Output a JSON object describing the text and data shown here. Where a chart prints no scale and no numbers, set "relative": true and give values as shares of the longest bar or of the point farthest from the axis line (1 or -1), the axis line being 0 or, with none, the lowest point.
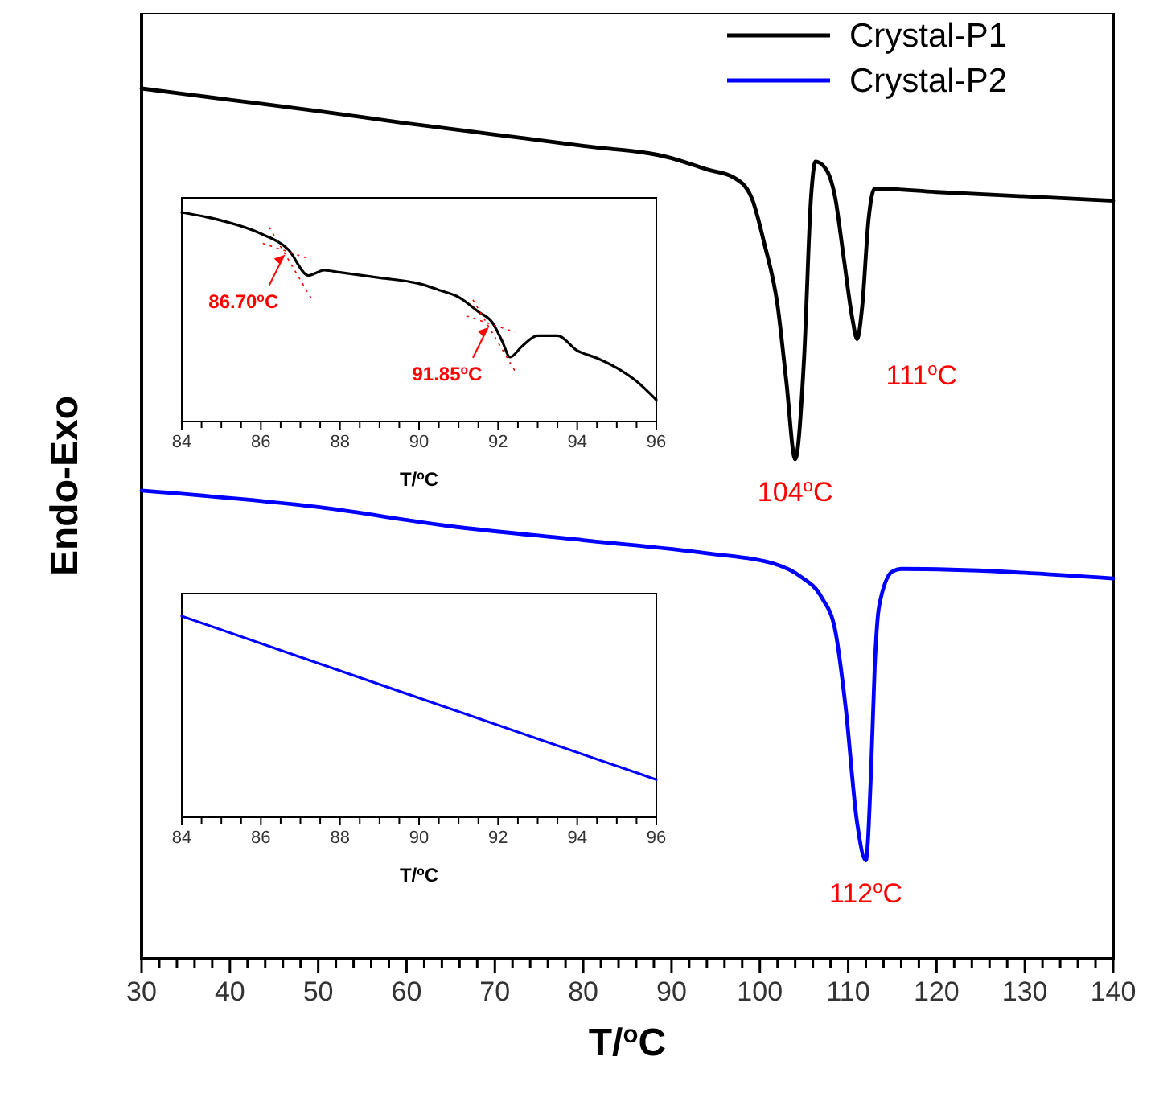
{
  "chart_data": [
    {
      "type": "line",
      "relative": true,
      "xlabel": "T/$^{o}$C",
      "ylabel": "Endo-Exo",
      "xlim": [
        30,
        140
      ],
      "legend": "top right",
      "grid": false,
      "tick_labels": "x",
      "xticks": [
        30,
        {
          "value": 32,
          "label": null
        },
        {
          "value": 34,
          "label": null
        },
        {
          "value": 36,
          "label": null
        },
        {
          "value": 38,
          "label": null
        },
        40,
        {
          "value": 42,
          "label": null
        },
        {
          "value": 44,
          "label": null
        },
        {
          "value": 46,
          "label": null
        },
        {
          "value": 48,
          "label": null
        },
        50,
        {
          "value": 52,
          "label": null
        },
        {
          "value": 54,
          "label": null
        },
        {
          "value": 56,
          "label": null
        },
        {
          "value": 58,
          "label": null
        },
        60,
        {
          "value": 62,
          "label": null
        },
        {
          "value": 64,
          "label": null
        },
        {
          "value": 66,
          "label": null
        },
        {
          "value": 68,
          "label": null
        },
        70,
        {
          "value": 72,
          "label": null
        },
        {
          "value": 74,
          "label": null
        },
        {
          "value": 76,
          "label": null
        },
        {
          "value": 78,
          "label": null
        },
        80,
        {
          "value": 82,
          "label": null
        },
        {
          "value": 84,
          "label": null
        },
        {
          "value": 86,
          "label": null
        },
        {
          "value": 88,
          "label": null
        },
        90,
        {
          "value": 92,
          "label": null
        },
        {
          "value": 94,
          "label": null
        },
        {
          "value": 96,
          "label": null
        },
        {
          "value": 98,
          "label": null
        },
        100,
        {
          "value": 102,
          "label": null
        },
        {
          "value": 104,
          "label": null
        },
        {
          "value": 106,
          "label": null
        },
        {
          "value": 108,
          "label": null
        },
        110,
        {
          "value": 112,
          "label": null
        },
        {
          "value": 114,
          "label": null
        },
        {
          "value": 116,
          "label": null
        },
        {
          "value": 118,
          "label": null
        },
        120,
        {
          "value": 122,
          "label": null
        },
        {
          "value": 124,
          "label": null
        },
        {
          "value": 126,
          "label": null
        },
        {
          "value": 128,
          "label": null
        },
        130,
        {
          "value": 132,
          "label": null
        },
        {
          "value": 134,
          "label": null
        },
        {
          "value": 136,
          "label": null
        },
        {
          "value": 138,
          "label": null
        },
        140
      ],
      "series": [
        {
          "name": "Crystal-P1",
          "color": "#000000",
          "x": [
            30,
            40,
            50,
            60,
            70,
            80,
            90,
            94,
            97,
            99,
            100.5,
            102,
            103,
            104,
            105,
            105.8,
            106.3,
            107.5,
            108.5,
            109.5,
            110.5,
            111,
            111.6,
            112.3,
            113,
            120,
            130,
            140
          ],
          "values": [
            1.0,
            0.987,
            0.974,
            0.96,
            0.947,
            0.934,
            0.92,
            0.907,
            0.898,
            0.876,
            0.822,
            0.751,
            0.663,
            0.574,
            0.689,
            0.876,
            0.916,
            0.907,
            0.876,
            0.805,
            0.734,
            0.712,
            0.751,
            0.849,
            0.885,
            0.881,
            0.876,
            0.871
          ]
        },
        {
          "name": "Crystal-P2",
          "color": "#0000ff",
          "x": [
            30,
            50,
            65,
            80,
            94,
            101.6,
            104.5,
            107,
            108.5,
            109.7,
            111,
            112,
            112.6,
            113,
            113.5,
            115,
            116,
            140
          ],
          "values": [
            0.538,
            0.519,
            0.497,
            0.481,
            0.466,
            0.454,
            0.44,
            0.415,
            0.379,
            0.29,
            0.157,
            0.113,
            0.219,
            0.335,
            0.405,
            0.445,
            0.448,
            0.437
          ]
        }
      ],
      "annotations": [
        {
          "text": "104$^{o}$C",
          "x": 104,
          "y": 0.574
        },
        {
          "text": "111$^{o}$C",
          "x": 111,
          "y": 0.712
        },
        {
          "text": "112$^{o}$C",
          "x": 112,
          "y": 0.113
        }
      ]
    },
    {
      "type": "line",
      "relative": true,
      "xlabel": "T/$^{o}$C",
      "xlim": [
        84,
        96
      ],
      "tick_labels": "x",
      "xticks": [
        84,
        {
          "value": 84.5,
          "label": null
        },
        {
          "value": 85,
          "label": null
        },
        {
          "value": 85.5,
          "label": null
        },
        86,
        {
          "value": 86.5,
          "label": null
        },
        {
          "value": 87,
          "label": null
        },
        {
          "value": 87.5,
          "label": null
        },
        88,
        {
          "value": 88.5,
          "label": null
        },
        {
          "value": 89,
          "label": null
        },
        {
          "value": 89.5,
          "label": null
        },
        90,
        {
          "value": 90.5,
          "label": null
        },
        {
          "value": 91,
          "label": null
        },
        {
          "value": 91.5,
          "label": null
        },
        92,
        {
          "value": 92.5,
          "label": null
        },
        {
          "value": 93,
          "label": null
        },
        {
          "value": 93.5,
          "label": null
        },
        94,
        {
          "value": 94.5,
          "label": null
        },
        {
          "value": 95,
          "label": null
        },
        {
          "value": 95.5,
          "label": null
        },
        96
      ],
      "series": [
        {
          "color": "#000000",
          "x": [
            84,
            85,
            86,
            86.7,
            87.2,
            87.6,
            88,
            89,
            90,
            90.5,
            91,
            91.5,
            91.85,
            92.1,
            92.3,
            92.6,
            93,
            93.5,
            94,
            94.5,
            95,
            95.5,
            96
          ],
          "values": [
            1,
            0.961,
            0.898,
            0.821,
            0.698,
            0.723,
            0.713,
            0.687,
            0.659,
            0.629,
            0.595,
            0.525,
            0.474,
            0.385,
            0.308,
            0.359,
            0.41,
            0.41,
            0.339,
            0.303,
            0.256,
            0.192,
            0.103
          ]
        }
      ],
      "annotations": [
        {
          "text": "86.70$^{o}$C",
          "x": 86.7,
          "y": 0.821
        },
        {
          "text": "91.85$^{o}$C",
          "x": 91.85,
          "y": 0.474
        }
      ]
    },
    {
      "type": "line",
      "relative": true,
      "xlabel": "T/$^{o}$C",
      "xlim": [
        84,
        96
      ],
      "tick_labels": "x",
      "xticks": [
        84,
        {
          "value": 84.5,
          "label": null
        },
        {
          "value": 85,
          "label": null
        },
        {
          "value": 85.5,
          "label": null
        },
        86,
        {
          "value": 86.5,
          "label": null
        },
        {
          "value": 87,
          "label": null
        },
        {
          "value": 87.5,
          "label": null
        },
        88,
        {
          "value": 88.5,
          "label": null
        },
        {
          "value": 89,
          "label": null
        },
        {
          "value": 89.5,
          "label": null
        },
        90,
        {
          "value": 90.5,
          "label": null
        },
        {
          "value": 91,
          "label": null
        },
        {
          "value": 91.5,
          "label": null
        },
        92,
        {
          "value": 92.5,
          "label": null
        },
        {
          "value": 93,
          "label": null
        },
        {
          "value": 93.5,
          "label": null
        },
        94,
        {
          "value": 94.5,
          "label": null
        },
        {
          "value": 95,
          "label": null
        },
        {
          "value": 95.5,
          "label": null
        },
        96
      ],
      "series": [
        {
          "color": "#0000ff",
          "x": [
            84,
            90,
            96
          ],
          "values": [
            1,
            0.593,
            0.187
          ]
        }
      ]
    }
  ]
}
